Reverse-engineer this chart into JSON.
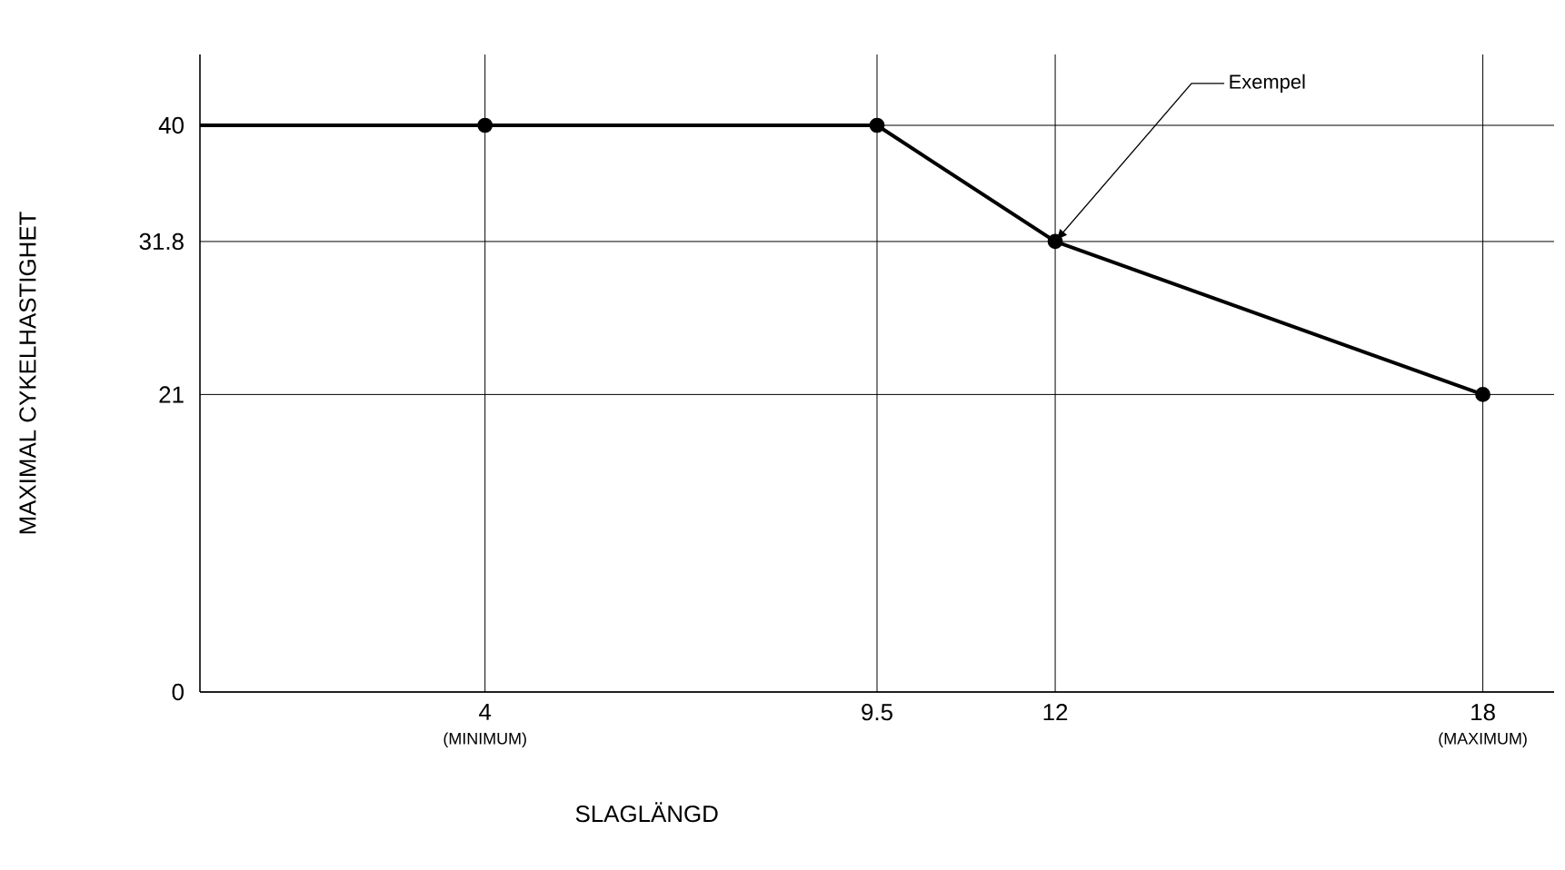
{
  "chart_data": {
    "type": "line",
    "xlabel": "SLAGLÄNGD",
    "ylabel": "MAXIMAL CYKELHASTIGHET",
    "series": [
      {
        "color": "#000000",
        "x": [
          0,
          4,
          9.5,
          12,
          18
        ],
        "values": [
          40,
          40,
          40,
          31.8,
          21
        ]
      }
    ],
    "marker": "circle",
    "xlim": [
      0,
      19
    ],
    "ylim": [
      0,
      45
    ],
    "xticks": [
      4,
      9.5,
      12,
      18
    ],
    "yticks": [
      0,
      21,
      31.8,
      40
    ],
    "grid": true,
    "line_style": "solid",
    "annotations": [
      {
        "text": "Exempel",
        "x": 12,
        "y": 31.8
      },
      "(MINIMUM)",
      "(MAXIMUM)"
    ]
  }
}
